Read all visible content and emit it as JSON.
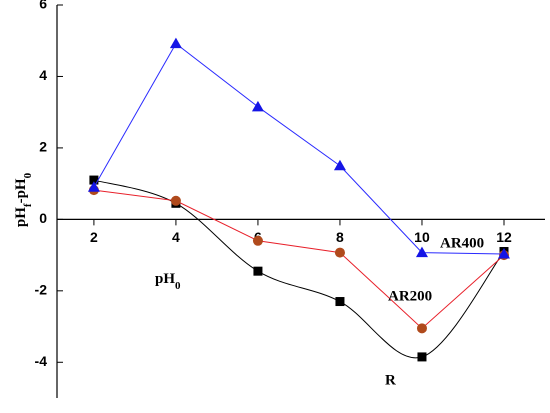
{
  "chart_data": {
    "type": "line",
    "ylabel": [
      "pH",
      "f",
      "-pH",
      "0"
    ],
    "xlabel": [
      "pH",
      "0"
    ],
    "x": [
      2,
      4,
      6,
      8,
      10,
      12
    ],
    "xlim": [
      1.1,
      13
    ],
    "xticks": [
      2,
      4,
      6,
      8,
      10,
      12
    ],
    "ylim": [
      -5,
      6
    ],
    "yticks": [
      -4,
      -2,
      0,
      2,
      4,
      6
    ],
    "series": [
      {
        "name": "R",
        "color": "#000000",
        "marker_color": "#000000",
        "marker": "square",
        "smooth": true,
        "values": [
          1.1,
          0.45,
          -1.45,
          -2.3,
          -3.85,
          -0.9
        ]
      },
      {
        "name": "AR200",
        "color": "#e8202a",
        "marker_color": "#b04a1c",
        "marker": "circle",
        "smooth": false,
        "values": [
          0.82,
          0.52,
          -0.6,
          -0.93,
          -3.05,
          -1.0
        ]
      },
      {
        "name": "AR400",
        "color": "#2a2aff",
        "marker_color": "#1515e6",
        "marker": "triangle",
        "smooth": false,
        "values": [
          0.9,
          4.92,
          3.15,
          1.5,
          -0.93,
          -0.97
        ]
      }
    ]
  }
}
